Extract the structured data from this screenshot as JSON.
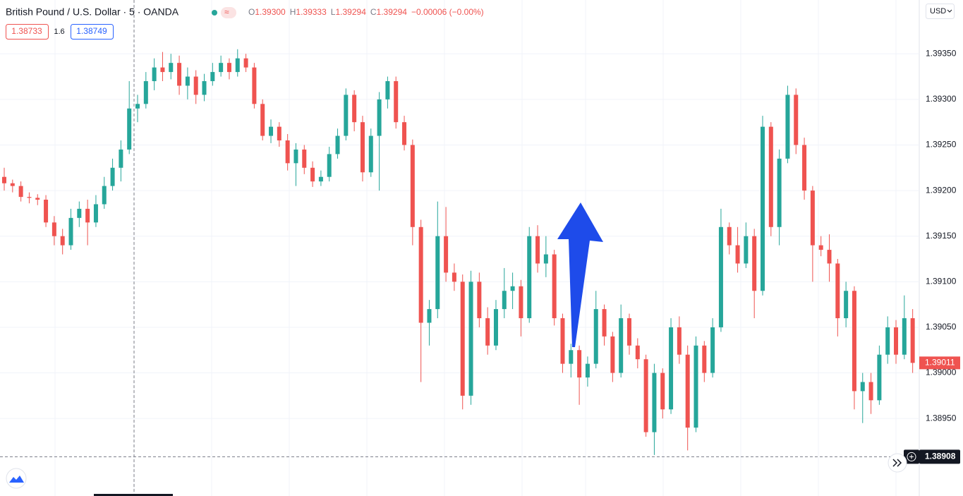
{
  "chart_data": {
    "type": "candlestick",
    "symbol": "British Pound / U.S. Dollar · 5 · OANDA",
    "legend": [
      {
        "key": "O",
        "value": "1.39300"
      },
      {
        "key": "H",
        "value": "1.39333"
      },
      {
        "key": "L",
        "value": "1.39294"
      },
      {
        "key": "C",
        "value": "1.39294"
      }
    ],
    "change": "−0.00006 (−0.00%)",
    "bid": "1.38733",
    "spread": "1.6",
    "ask": "1.38749",
    "currency": "USD",
    "up_color": "#26a69a",
    "down_color": "#ef5350",
    "ylim": [
      1.38865,
      1.39409
    ],
    "yticks": [
      {
        "value": 1.3895,
        "label": "1.38950"
      },
      {
        "value": 1.39,
        "label": "1.39000"
      },
      {
        "value": 1.3905,
        "label": "1.39050"
      },
      {
        "value": 1.391,
        "label": "1.39100"
      },
      {
        "value": 1.3915,
        "label": "1.39150"
      },
      {
        "value": 1.392,
        "label": "1.39200"
      },
      {
        "value": 1.3925,
        "label": "1.39250"
      },
      {
        "value": 1.393,
        "label": "1.39300"
      },
      {
        "value": 1.3935,
        "label": "1.39350"
      }
    ],
    "grid": true,
    "last_price": {
      "value": 1.39011,
      "label": "1.39011"
    },
    "crosshair_price": {
      "value": 1.38908,
      "label": "1.38908"
    },
    "ohlc": [
      [
        1.39215,
        1.39225,
        1.392,
        1.39208
      ],
      [
        1.39208,
        1.39212,
        1.39198,
        1.39205
      ],
      [
        1.39205,
        1.3921,
        1.39188,
        1.39193
      ],
      [
        1.39193,
        1.39198,
        1.39186,
        1.39192
      ],
      [
        1.39192,
        1.39196,
        1.39184,
        1.3919
      ],
      [
        1.3919,
        1.39195,
        1.3916,
        1.39165
      ],
      [
        1.39165,
        1.39172,
        1.3914,
        1.3915
      ],
      [
        1.3915,
        1.39158,
        1.3913,
        1.3914
      ],
      [
        1.3914,
        1.3918,
        1.39135,
        1.3917
      ],
      [
        1.3917,
        1.39188,
        1.3916,
        1.3918
      ],
      [
        1.3918,
        1.3919,
        1.3914,
        1.39165
      ],
      [
        1.39165,
        1.39195,
        1.3916,
        1.39185
      ],
      [
        1.39185,
        1.39215,
        1.3918,
        1.39205
      ],
      [
        1.39205,
        1.39235,
        1.392,
        1.39225
      ],
      [
        1.39225,
        1.39255,
        1.3921,
        1.39245
      ],
      [
        1.39245,
        1.3932,
        1.3924,
        1.3929
      ],
      [
        1.3929,
        1.39305,
        1.39275,
        1.39295
      ],
      [
        1.39295,
        1.3933,
        1.3929,
        1.3932
      ],
      [
        1.3932,
        1.39345,
        1.3931,
        1.39335
      ],
      [
        1.39335,
        1.39352,
        1.3932,
        1.3933
      ],
      [
        1.3933,
        1.3935,
        1.39322,
        1.3934
      ],
      [
        1.3934,
        1.39348,
        1.39305,
        1.39315
      ],
      [
        1.39315,
        1.39335,
        1.393,
        1.39325
      ],
      [
        1.39325,
        1.39332,
        1.39295,
        1.39305
      ],
      [
        1.39305,
        1.39328,
        1.39298,
        1.3932
      ],
      [
        1.3932,
        1.3934,
        1.39315,
        1.3933
      ],
      [
        1.3933,
        1.39348,
        1.39325,
        1.3934
      ],
      [
        1.3934,
        1.39345,
        1.39322,
        1.3933
      ],
      [
        1.3933,
        1.39355,
        1.39325,
        1.39345
      ],
      [
        1.39345,
        1.3935,
        1.3933,
        1.39335
      ],
      [
        1.39335,
        1.3934,
        1.3929,
        1.39295
      ],
      [
        1.39295,
        1.393,
        1.39255,
        1.3926
      ],
      [
        1.3926,
        1.39278,
        1.39252,
        1.3927
      ],
      [
        1.3927,
        1.39275,
        1.39248,
        1.39255
      ],
      [
        1.39255,
        1.39262,
        1.39222,
        1.3923
      ],
      [
        1.3923,
        1.39252,
        1.39205,
        1.39245
      ],
      [
        1.39245,
        1.3925,
        1.39218,
        1.39225
      ],
      [
        1.39225,
        1.39232,
        1.39204,
        1.3921
      ],
      [
        1.3921,
        1.39222,
        1.39205,
        1.39215
      ],
      [
        1.39215,
        1.39248,
        1.3921,
        1.3924
      ],
      [
        1.3924,
        1.39268,
        1.39235,
        1.3926
      ],
      [
        1.3926,
        1.39312,
        1.39255,
        1.39305
      ],
      [
        1.39305,
        1.3931,
        1.39265,
        1.39275
      ],
      [
        1.39275,
        1.39282,
        1.3921,
        1.3922
      ],
      [
        1.3922,
        1.39268,
        1.39215,
        1.3926
      ],
      [
        1.3926,
        1.39308,
        1.392,
        1.393
      ],
      [
        1.393,
        1.39325,
        1.3929,
        1.3932
      ],
      [
        1.3932,
        1.39325,
        1.39268,
        1.39275
      ],
      [
        1.39275,
        1.39282,
        1.39244,
        1.3925
      ],
      [
        1.3925,
        1.39256,
        1.3914,
        1.3916
      ],
      [
        1.3916,
        1.39168,
        1.3899,
        1.39055
      ],
      [
        1.39055,
        1.3908,
        1.3903,
        1.3907
      ],
      [
        1.3907,
        1.39188,
        1.3906,
        1.3915
      ],
      [
        1.3915,
        1.39182,
        1.391,
        1.3911
      ],
      [
        1.3911,
        1.3912,
        1.3909,
        1.391
      ],
      [
        1.391,
        1.39108,
        1.3896,
        1.38975
      ],
      [
        1.38975,
        1.39112,
        1.38965,
        1.391
      ],
      [
        1.391,
        1.3911,
        1.3905,
        1.3906
      ],
      [
        1.3906,
        1.39072,
        1.3902,
        1.3903
      ],
      [
        1.3903,
        1.3908,
        1.39025,
        1.3907
      ],
      [
        1.3907,
        1.39115,
        1.3906,
        1.3909
      ],
      [
        1.3909,
        1.3911,
        1.3907,
        1.39095
      ],
      [
        1.39095,
        1.39102,
        1.3904,
        1.3906
      ],
      [
        1.3906,
        1.3916,
        1.39055,
        1.3915
      ],
      [
        1.3915,
        1.39162,
        1.3911,
        1.3912
      ],
      [
        1.3912,
        1.3915,
        1.39105,
        1.3913
      ],
      [
        1.3913,
        1.39135,
        1.39052,
        1.3906
      ],
      [
        1.3906,
        1.39065,
        1.39,
        1.3901
      ],
      [
        1.3901,
        1.39032,
        1.38995,
        1.39025
      ],
      [
        1.39025,
        1.3903,
        1.38965,
        1.38995
      ],
      [
        1.38995,
        1.39018,
        1.38985,
        1.3901
      ],
      [
        1.3901,
        1.3909,
        1.39005,
        1.3907
      ],
      [
        1.3907,
        1.39075,
        1.3903,
        1.3904
      ],
      [
        1.3904,
        1.39045,
        1.3899,
        1.39
      ],
      [
        1.39,
        1.39075,
        1.38995,
        1.3906
      ],
      [
        1.3906,
        1.39065,
        1.3902,
        1.3903
      ],
      [
        1.3903,
        1.39038,
        1.39005,
        1.39015
      ],
      [
        1.39015,
        1.3902,
        1.3893,
        1.38935
      ],
      [
        1.38935,
        1.3901,
        1.3891,
        1.39
      ],
      [
        1.39,
        1.39005,
        1.3895,
        1.3896
      ],
      [
        1.3896,
        1.3906,
        1.38955,
        1.3905
      ],
      [
        1.3905,
        1.39062,
        1.3901,
        1.3902
      ],
      [
        1.3902,
        1.3903,
        1.38915,
        1.3894
      ],
      [
        1.3894,
        1.3904,
        1.38935,
        1.3903
      ],
      [
        1.3903,
        1.39035,
        1.3899,
        1.39
      ],
      [
        1.39,
        1.3906,
        1.38995,
        1.3905
      ],
      [
        1.3905,
        1.3918,
        1.39045,
        1.3916
      ],
      [
        1.3916,
        1.39165,
        1.3913,
        1.3914
      ],
      [
        1.3914,
        1.3916,
        1.3911,
        1.3912
      ],
      [
        1.3912,
        1.39165,
        1.39115,
        1.3915
      ],
      [
        1.3915,
        1.39158,
        1.3906,
        1.3909
      ],
      [
        1.3909,
        1.39282,
        1.39085,
        1.3927
      ],
      [
        1.3927,
        1.39275,
        1.3915,
        1.3916
      ],
      [
        1.3916,
        1.39245,
        1.3914,
        1.39235
      ],
      [
        1.39235,
        1.39315,
        1.3923,
        1.39305
      ],
      [
        1.39305,
        1.39312,
        1.3924,
        1.3925
      ],
      [
        1.3925,
        1.39258,
        1.3919,
        1.392
      ],
      [
        1.392,
        1.39205,
        1.391,
        1.3914
      ],
      [
        1.3914,
        1.3915,
        1.39128,
        1.39135
      ],
      [
        1.39135,
        1.39152,
        1.391,
        1.3912
      ],
      [
        1.3912,
        1.39125,
        1.3904,
        1.3906
      ],
      [
        1.3906,
        1.391,
        1.3905,
        1.3909
      ],
      [
        1.3909,
        1.39095,
        1.3896,
        1.3898
      ],
      [
        1.3898,
        1.39,
        1.38945,
        1.3899
      ],
      [
        1.3899,
        1.39,
        1.38955,
        1.3897
      ],
      [
        1.3897,
        1.3903,
        1.38965,
        1.3902
      ],
      [
        1.3902,
        1.39062,
        1.3901,
        1.3905
      ],
      [
        1.3905,
        1.39058,
        1.3901,
        1.3902
      ],
      [
        1.3902,
        1.39085,
        1.39015,
        1.3906
      ],
      [
        1.3906,
        1.3907,
        1.39,
        1.39011
      ]
    ]
  }
}
